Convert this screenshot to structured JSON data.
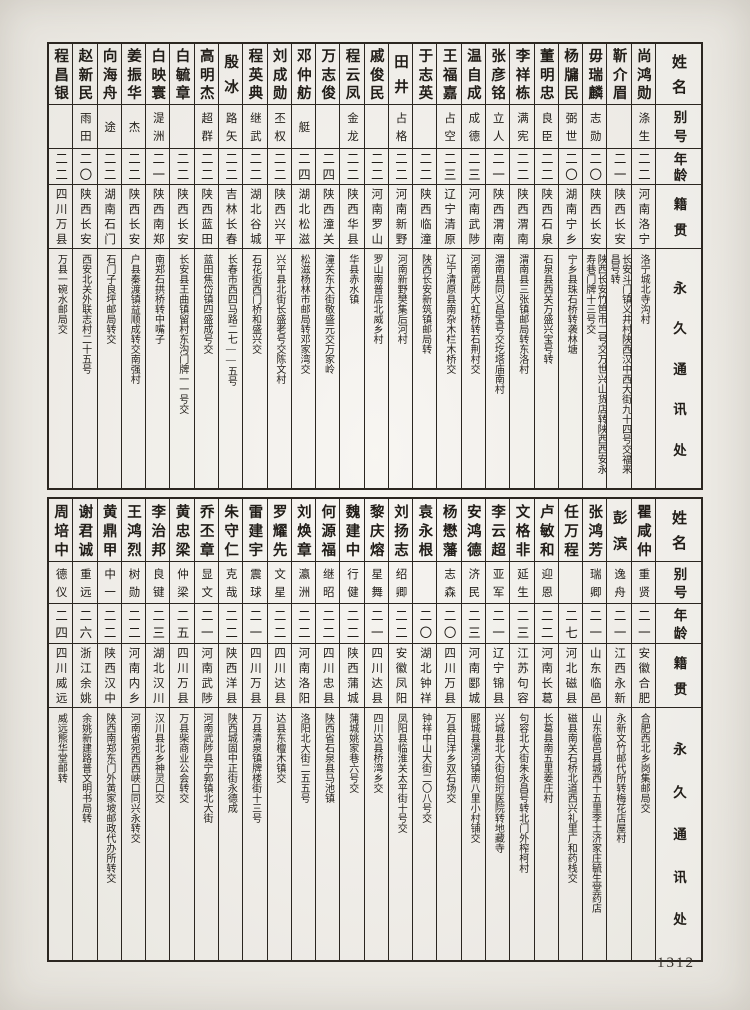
{
  "page_number": "1312",
  "column_headers": {
    "name": "姓名",
    "alias": "别号",
    "age": "年龄",
    "native_place": "籍贯",
    "address": "永久通讯处"
  },
  "tables": [
    {
      "persons": [
        {
          "name": "尚鸿勋",
          "alias": "涤生",
          "age": "二二",
          "native_place": "河南洛宁",
          "address": "洛宁城北寺沟村"
        },
        {
          "name": "靳介眉",
          "alias": "",
          "age": "二一",
          "native_place": "陕西长安",
          "address": "长安斗门镇义井村陕西汉中西大街九十四号交福来昌号转"
        },
        {
          "name": "毋瑞麟",
          "alias": "志勋",
          "age": "二〇",
          "native_place": "陕西长安",
          "address": "陕西长安竹笆市二号交万世兴山货店转陕西西安永寿巷门牌十三号交"
        },
        {
          "name": "杨牖民",
          "alias": "弼世",
          "age": "二〇",
          "native_place": "湖南宁乡",
          "address": "宁乡县珠石桥转袭林塘"
        },
        {
          "name": "董明忠",
          "alias": "良臣",
          "age": "二二",
          "native_place": "陕西石泉",
          "address": "石泉县西关万盛兴宝号转"
        },
        {
          "name": "李祥栋",
          "alias": "满宪",
          "age": "二二",
          "native_place": "陕西渭南",
          "address": "渭南县三张镇邮局转东洛村"
        },
        {
          "name": "张彦铭",
          "alias": "立人",
          "age": "二一",
          "native_place": "陕西渭南",
          "address": "渭南县同义昌宝号交圪塔庙南村"
        },
        {
          "name": "温自成",
          "alias": "成德",
          "age": "二三",
          "native_place": "河南武陟",
          "address": "河南武陟大虹桥转石荆村交"
        },
        {
          "name": "王福嘉",
          "alias": "占空",
          "age": "二三",
          "native_place": "辽宁清原",
          "address": "辽宁清原县南杂木栏木桥交"
        },
        {
          "name": "于志英",
          "alias": "",
          "age": "二二",
          "native_place": "陕西临潼",
          "address": "陕西长安新筑镇邮局转"
        },
        {
          "name": "田井",
          "alias": "占格",
          "age": "二二",
          "native_place": "河南新野",
          "address": "河南新野樊集后河村"
        },
        {
          "name": "戚俊民",
          "alias": "",
          "age": "二二",
          "native_place": "河南罗山",
          "address": "罗山南普店北威乡村"
        },
        {
          "name": "程云凤",
          "alias": "金龙",
          "age": "二二",
          "native_place": "陕西华县",
          "address": "华县赤水镇"
        },
        {
          "name": "万志俊",
          "alias": "",
          "age": "二四",
          "native_place": "陕西潼关",
          "address": "潼关东大街敬盛元交万家岭"
        },
        {
          "name": "邓仲舫",
          "alias": "艇",
          "age": "二四",
          "native_place": "湖北松滋",
          "address": "松滋杨林市邮局转邓家湾交"
        },
        {
          "name": "刘成勋",
          "alias": "丕权",
          "age": "二二",
          "native_place": "陕西兴平",
          "address": "兴平县北街长盛老号交陈文村"
        },
        {
          "name": "程英典",
          "alias": "继武",
          "age": "二二",
          "native_place": "湖北谷城",
          "address": "石花街西门桥和盛兴交"
        },
        {
          "name": "殷冰",
          "alias": "路矢",
          "age": "二二",
          "native_place": "吉林长春",
          "address": "长春市西四马路二七——五号"
        },
        {
          "name": "高明杰",
          "alias": "超群",
          "age": "二二",
          "native_place": "陕西蓝田",
          "address": "蓝田焦岱镇四盛成号交"
        },
        {
          "name": "白毓章",
          "alias": "",
          "age": "二二",
          "native_place": "陕西长安",
          "address": "长安县王曲镇留村东沟门牌一一号交"
        },
        {
          "name": "白映寰",
          "alias": "湜洲",
          "age": "二一",
          "native_place": "陕西南郑",
          "address": "南郑石拱桥转中嘴子"
        },
        {
          "name": "姜振华",
          "alias": "杰",
          "age": "二二",
          "native_place": "陕西长安",
          "address": "户县秦渡镇益顺成转交南强村"
        },
        {
          "name": "向海舟",
          "alias": "途",
          "age": "二二",
          "native_place": "湖南石门",
          "address": "石门子良坪邮局转交"
        },
        {
          "name": "赵新民",
          "alias": "雨田",
          "age": "二〇",
          "native_place": "陕西长安",
          "address": "西安北关外联志村二十五号"
        },
        {
          "name": "程昌银",
          "alias": "",
          "age": "二二",
          "native_place": "四川万县",
          "address": "万县一碗水邮局交"
        }
      ]
    },
    {
      "persons": [
        {
          "name": "瞿咸仲",
          "alias": "重贤",
          "age": "二一",
          "native_place": "安徽合肥",
          "address": "合肥西北乡岗集邮局交"
        },
        {
          "name": "彭滨",
          "alias": "逸舟",
          "age": "二一",
          "native_place": "江西永新",
          "address": "永新文竹邮代所转梅花店屋村"
        },
        {
          "name": "张鸿芳",
          "alias": "瑞卿",
          "age": "二一",
          "native_place": "山东临邑",
          "address": "山东临邑县城西十五里李士济家庄毓生堂药店"
        },
        {
          "name": "任万程",
          "alias": "",
          "age": "二七",
          "native_place": "河北磁县",
          "address": "磁县南关石桥北道西兴礼里广和药栈交"
        },
        {
          "name": "卢敏和",
          "alias": "迎恩",
          "age": "二二",
          "native_place": "河南长葛",
          "address": "长葛县南五里姜庄村"
        },
        {
          "name": "文格非",
          "alias": "延生",
          "age": "二三",
          "native_place": "江苏句容",
          "address": "句容北大街朱永昌号转北门外榨柯村"
        },
        {
          "name": "李云超",
          "alias": "亚军",
          "age": "二一",
          "native_place": "辽宁锦县",
          "address": "兴城县北大街伯珩医院转地藏寺"
        },
        {
          "name": "安鸿德",
          "alias": "济民",
          "age": "二三",
          "native_place": "河南郾城",
          "address": "郾城县漯河镇南八里小村铺交"
        },
        {
          "name": "杨懋藩",
          "alias": "志森",
          "age": "二〇",
          "native_place": "四川万县",
          "address": "万县白洋乡双石场交"
        },
        {
          "name": "袁永根",
          "alias": "",
          "age": "二〇",
          "native_place": "湖北钟祥",
          "address": "钟祥中山大街二〇八号交"
        },
        {
          "name": "刘扬志",
          "alias": "绍卿",
          "age": "二二",
          "native_place": "安徽凤阳",
          "address": "凤阳县临淮关太平街十号交"
        },
        {
          "name": "黎庆熔",
          "alias": "星舞",
          "age": "二一",
          "native_place": "四川达县",
          "address": "四川达县桥湾乡交"
        },
        {
          "name": "魏建中",
          "alias": "行健",
          "age": "二二",
          "native_place": "陕西蒲城",
          "address": "蒲城姚家巷六号交"
        },
        {
          "name": "何源福",
          "alias": "继昭",
          "age": "二二",
          "native_place": "四川忠县",
          "address": "陕西省石泉县马池镇"
        },
        {
          "name": "刘焕章",
          "alias": "瀛洲",
          "age": "二二",
          "native_place": "河南洛阳",
          "address": "洛阳北大街二五五号"
        },
        {
          "name": "罗耀先",
          "alias": "文星",
          "age": "二二",
          "native_place": "四川达县",
          "address": "达县东檀木镇交"
        },
        {
          "name": "雷建宇",
          "alias": "震球",
          "age": "二一",
          "native_place": "四川万县",
          "address": "万县清泉镇牌楼街十三号"
        },
        {
          "name": "朱守仁",
          "alias": "克哉",
          "age": "二二",
          "native_place": "陕西洋县",
          "address": "陕西城固中正街永德成"
        },
        {
          "name": "乔丕章",
          "alias": "显文",
          "age": "二一",
          "native_place": "河南武陟",
          "address": "河南武陟县宁郭镇北大街"
        },
        {
          "name": "黄忠梁",
          "alias": "仲梁",
          "age": "二五",
          "native_place": "四川万县",
          "address": "万县柴商业公会转交"
        },
        {
          "name": "李治邦",
          "alias": "良键",
          "age": "二三",
          "native_place": "湖北汉川",
          "address": "汉川县北乡神灵口交"
        },
        {
          "name": "王鸿烈",
          "alias": "树勋",
          "age": "二二",
          "native_place": "河南内乡",
          "address": "河南省宛西西峡口同兴永转交"
        },
        {
          "name": "黄鼎甲",
          "alias": "中一",
          "age": "二二",
          "native_place": "陕西汉中",
          "address": "陕西南郑东门外黄家坡邮政代办所转交"
        },
        {
          "name": "谢君诚",
          "alias": "重远",
          "age": "二六",
          "native_place": "浙江余姚",
          "address": "余姚新建路普文明书局转"
        },
        {
          "name": "周培中",
          "alias": "德仪",
          "age": "二四",
          "native_place": "四川威远",
          "address": "威远熊华堂邮转"
        }
      ]
    }
  ]
}
